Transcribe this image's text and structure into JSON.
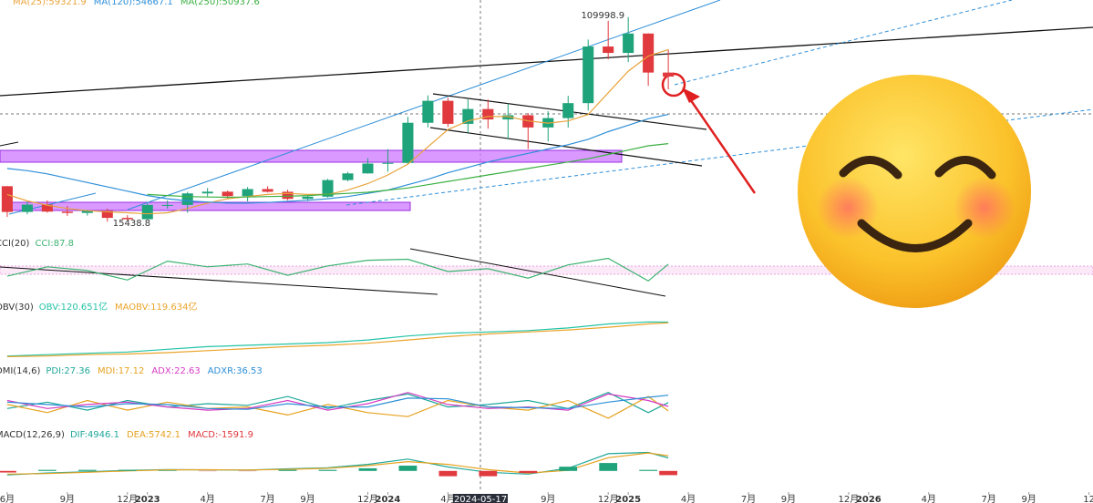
{
  "chart_data": [
    {
      "type": "candlestick",
      "x": [
        0,
        1,
        2,
        3,
        4,
        5,
        6,
        7,
        8,
        9,
        10,
        11,
        12,
        13,
        14,
        15,
        16,
        17,
        18,
        19,
        20,
        21,
        22,
        23,
        24,
        25,
        26,
        27,
        28,
        29,
        30,
        31,
        32,
        33
      ],
      "open": [
        31800,
        19900,
        23300,
        20050,
        19430,
        20490,
        17170,
        16540,
        23130,
        23140,
        28480,
        29270,
        27220,
        30480,
        29230,
        25940,
        26960,
        34640,
        37720,
        42280,
        42580,
        61130,
        71290,
        60640,
        67490,
        62680,
        64620,
        58970,
        63300,
        70220,
        96400,
        93430,
        102400,
        84350
      ],
      "high": [
        31900,
        24600,
        25200,
        22700,
        20990,
        21450,
        18400,
        23950,
        25250,
        29200,
        31000,
        29820,
        31400,
        31800,
        30200,
        27500,
        35200,
        38450,
        44700,
        48970,
        63900,
        73800,
        72700,
        71950,
        71950,
        70000,
        65600,
        66500,
        73600,
        99600,
        108300,
        109998.9,
        102500,
        95000
      ],
      "low": [
        17600,
        18800,
        19600,
        18100,
        18200,
        15438.8,
        16260,
        16500,
        21400,
        19550,
        27000,
        25800,
        24800,
        28900,
        25300,
        24900,
        26550,
        34100,
        37600,
        38500,
        41900,
        59000,
        59200,
        56500,
        58400,
        53500,
        49000,
        52500,
        58900,
        66800,
        90500,
        89200,
        78200,
        76600
      ],
      "close": [
        19900,
        23300,
        20050,
        19430,
        20490,
        17170,
        16540,
        23130,
        23140,
        28480,
        29270,
        27220,
        30480,
        29230,
        25940,
        26960,
        34640,
        37720,
        42280,
        42580,
        61130,
        71290,
        60640,
        67490,
        62680,
        64620,
        58970,
        63300,
        70220,
        96400,
        93430,
        102400,
        84350,
        82500
      ],
      "up_color": "#1fa37a",
      "down_color": "#e0393e",
      "series": [
        {
          "name": "MA(25):59321.9",
          "color": "#e8a33a",
          "values": [
            28000,
            25000,
            23000,
            21500,
            20500,
            20000,
            19500,
            19000,
            19500,
            21500,
            24000,
            26000,
            27000,
            28000,
            28500,
            28000,
            28000,
            30000,
            33000,
            37000,
            42000,
            50000,
            58000,
            62000,
            64000,
            64000,
            62000,
            61000,
            62000,
            65000,
            75000,
            85000,
            92000,
            95000
          ]
        },
        {
          "name": "MA(120):54667.1",
          "color": "#2f8fd8",
          "values": [
            40000,
            39000,
            37500,
            35500,
            33500,
            31500,
            29500,
            27500,
            26000,
            25000,
            24500,
            24000,
            24000,
            24300,
            24800,
            25300,
            26000,
            27000,
            28500,
            30000,
            32500,
            35000,
            38000,
            40500,
            43000,
            45000,
            47000,
            49000,
            51000,
            53500,
            57000,
            60000,
            63000,
            65000
          ]
        },
        {
          "name": "MA(250):50937.6",
          "color": "#3cb043",
          "values": [
            null,
            null,
            null,
            null,
            null,
            null,
            null,
            28000,
            27500,
            27000,
            26800,
            26700,
            26800,
            27000,
            27200,
            27500,
            28000,
            28500,
            29000,
            30000,
            31000,
            32500,
            34000,
            35500,
            37000,
            38500,
            40000,
            41500,
            43000,
            44500,
            46500,
            48500,
            50500,
            51500
          ]
        }
      ],
      "annotations": [
        "109998.9",
        "15438.8"
      ],
      "xlim": [
        -0.36,
        54.2
      ],
      "ylim": [
        10460,
        116220
      ]
    },
    {
      "type": "line",
      "label": "CCI(20)",
      "x": [
        0,
        2,
        4,
        6,
        8,
        10,
        12,
        14,
        16,
        18,
        20,
        22,
        24,
        26,
        28,
        30,
        32,
        33
      ],
      "series": [
        {
          "name": "CCI:87.8",
          "color": "#3cb371",
          "values": [
            -40,
            60,
            20,
            -80,
            120,
            60,
            90,
            -30,
            70,
            130,
            140,
            10,
            40,
            -60,
            80,
            150,
            -90,
            87.8
          ]
        }
      ],
      "xlim": [
        -0.36,
        54.2
      ],
      "ylim": [
        -300,
        300
      ]
    },
    {
      "type": "line",
      "label": "OBV(30)",
      "x": [
        0,
        2,
        4,
        6,
        8,
        10,
        12,
        14,
        16,
        18,
        20,
        22,
        24,
        26,
        28,
        30,
        32,
        33
      ],
      "series": [
        {
          "name": "OBV:120.651亿",
          "color": "#22c3a6",
          "values": [
            70,
            72,
            74,
            76,
            80,
            84,
            86,
            88,
            90,
            94,
            100,
            104,
            106,
            108,
            112,
            118,
            121,
            120.651
          ]
        },
        {
          "name": "MAOBV:119.634亿",
          "color": "#eaa42a",
          "values": [
            69,
            70,
            72,
            73,
            75,
            78,
            81,
            84,
            86,
            89,
            94,
            99,
            103,
            106,
            109,
            113,
            118,
            119.634
          ]
        }
      ],
      "xlim": [
        -0.36,
        54.2
      ],
      "ylim": [
        60,
        135
      ]
    },
    {
      "type": "line",
      "label": "DMI(14,6)",
      "x": [
        0,
        2,
        4,
        6,
        8,
        10,
        12,
        14,
        16,
        18,
        20,
        22,
        24,
        26,
        28,
        30,
        32,
        33
      ],
      "series": [
        {
          "name": "PDI:27.36",
          "color": "#1fa89a",
          "values": [
            20,
            28,
            18,
            30,
            22,
            26,
            24,
            35,
            20,
            30,
            38,
            22,
            25,
            30,
            20,
            40,
            15,
            27.36
          ]
        },
        {
          "name": "MDI:17.12",
          "color": "#e6a21f",
          "values": [
            25,
            15,
            30,
            18,
            28,
            20,
            22,
            12,
            25,
            15,
            10,
            30,
            22,
            18,
            30,
            8,
            35,
            17.12
          ]
        },
        {
          "name": "ADX:22.63",
          "color": "#d63bc4",
          "values": [
            30,
            20,
            25,
            28,
            22,
            18,
            20,
            30,
            18,
            26,
            40,
            25,
            20,
            22,
            18,
            38,
            30,
            22.63
          ]
        },
        {
          "name": "ADXR:36.53",
          "color": "#2b8fd6",
          "values": [
            28,
            25,
            22,
            26,
            25,
            20,
            19,
            26,
            22,
            22,
            33,
            32,
            22,
            21,
            20,
            28,
            34,
            36.53
          ]
        }
      ],
      "xlim": [
        -0.36,
        54.2
      ],
      "ylim": [
        0,
        60
      ]
    },
    {
      "type": "line",
      "label": "MACD(12,26,9)",
      "x": [
        0,
        2,
        4,
        6,
        8,
        10,
        12,
        14,
        16,
        18,
        20,
        22,
        24,
        26,
        28,
        30,
        32,
        33
      ],
      "series": [
        {
          "name": "DIF:4946.1",
          "color": "#1fa89a",
          "values": [
            -1500,
            -800,
            -300,
            200,
            500,
            400,
            300,
            800,
            1200,
            2500,
            4500,
            1500,
            -500,
            -1200,
            1000,
            6500,
            7000,
            4946.1
          ]
        },
        {
          "name": "DEA:5742.1",
          "color": "#e6a21f",
          "values": [
            -1200,
            -1000,
            -500,
            0,
            400,
            450,
            350,
            600,
            1000,
            2000,
            3500,
            2500,
            500,
            -800,
            200,
            5000,
            6800,
            5742.1
          ]
        },
        {
          "name": "MACD:-1591.9",
          "color": "#e0393e",
          "style": "histogram",
          "up_color": "#1fa37a",
          "down_color": "#e0393e",
          "values": [
            -600,
            400,
            400,
            400,
            200,
            -100,
            -100,
            400,
            400,
            1000,
            2000,
            -2000,
            -2000,
            -800,
            1600,
            3000,
            400,
            -1591.9
          ]
        }
      ],
      "crosshair_label": "2024-05-17",
      "xticks": [
        {
          "value": 0,
          "label": "6月"
        },
        {
          "value": 3,
          "label": "9月"
        },
        {
          "value": 6,
          "label": "12月"
        },
        {
          "value": 7,
          "label": "2023"
        },
        {
          "value": 10,
          "label": "4月"
        },
        {
          "value": 13,
          "label": "7月"
        },
        {
          "value": 15,
          "label": "9月"
        },
        {
          "value": 18,
          "label": "12月"
        },
        {
          "value": 19,
          "label": "2024"
        },
        {
          "value": 22,
          "label": "4月"
        },
        {
          "value": 27,
          "label": "9月"
        },
        {
          "value": 30,
          "label": "12月"
        },
        {
          "value": 31,
          "label": "2025"
        },
        {
          "value": 34,
          "label": "4月"
        },
        {
          "value": 37,
          "label": "7月"
        },
        {
          "value": 39,
          "label": "9月"
        },
        {
          "value": 42,
          "label": "12月"
        },
        {
          "value": 43,
          "label": "2026"
        },
        {
          "value": 46,
          "label": "4月"
        },
        {
          "value": 49,
          "label": "7月"
        },
        {
          "value": 51,
          "label": "9月"
        },
        {
          "value": 54,
          "label": "12"
        }
      ],
      "xlim": [
        -0.36,
        54.2
      ],
      "ylim": [
        -8000,
        12000
      ]
    }
  ]
}
